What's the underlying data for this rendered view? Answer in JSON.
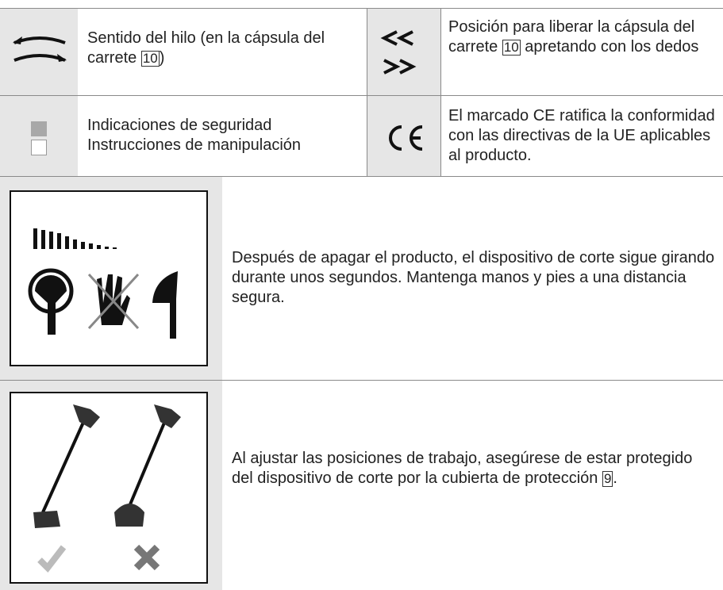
{
  "symbol_table": {
    "rows": [
      [
        {
          "parts": [
            "Sentido del hilo (en la cápsula del carrete ",
            "10",
            ")"
          ]
        },
        {
          "parts": [
            "Posición para liberar la cápsula del carrete ",
            "10",
            " apretando con los dedos"
          ]
        }
      ],
      [
        {
          "lines": [
            "Indicaciones de seguridad",
            "Instrucciones de manipulación"
          ]
        },
        {
          "parts": [
            "El marcado CE ratifica la conformidad con las directivas de la UE aplicables al producto."
          ]
        }
      ]
    ]
  },
  "warnings": [
    {
      "parts": [
        "Después de apagar el producto, el dispositivo de corte sigue girando durante unos segundos. Mantenga manos y pies a una distancia segura."
      ]
    },
    {
      "parts": [
        "Al ajustar las posiciones de trabajo, asegúrese de estar protegido del dispositivo de corte por la cubierta de protección ",
        "9",
        "."
      ]
    }
  ]
}
